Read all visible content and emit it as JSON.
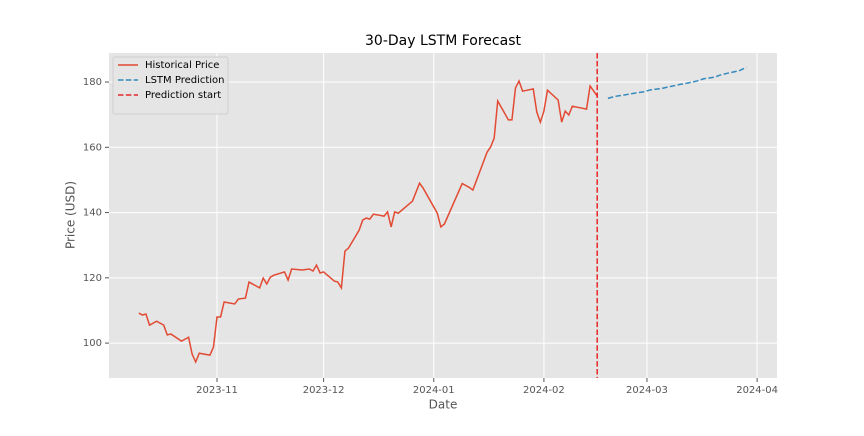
{
  "chart_data": {
    "type": "line",
    "title": "30-Day LSTM Forecast",
    "x_label": "Date",
    "y_label": "Price (USD)",
    "series": [
      {
        "name": "Historical Price",
        "color": "#E24A33",
        "dash": false,
        "x": [
          19640,
          19641,
          19642,
          19643,
          19645,
          19647,
          19648,
          19649,
          19652,
          19654,
          19655,
          19656,
          19657,
          19660,
          19661,
          19662,
          19663,
          19664,
          19667,
          19668,
          19670,
          19671,
          19674,
          19675,
          19676,
          19677,
          19678,
          19681,
          19682,
          19683,
          19686,
          19688,
          19689,
          19690,
          19691,
          19692,
          19695,
          19696,
          19697,
          19698,
          19699,
          19702,
          19703,
          19704,
          19705,
          19706,
          19709,
          19710,
          19711,
          19712,
          19713,
          19717,
          19719,
          19720,
          19724,
          19725,
          19726,
          19731,
          19733,
          19734,
          19738,
          19739,
          19740,
          19741,
          19744,
          19745,
          19746,
          19747,
          19748,
          19751,
          19752,
          19753,
          19754,
          19755,
          19758,
          19759,
          19760,
          19761,
          19762,
          19766,
          19767,
          19769
        ],
        "values": [
          109.2,
          108.6,
          108.9,
          105.5,
          106.7,
          105.5,
          102.5,
          102.8,
          100.6,
          101.8,
          96.6,
          94.2,
          96.9,
          96.3,
          98.8,
          108.0,
          108.0,
          112.6,
          112.0,
          113.5,
          113.8,
          118.7,
          116.9,
          119.9,
          118.1,
          120.2,
          120.8,
          121.8,
          119.3,
          122.7,
          122.4,
          122.7,
          122.1,
          123.9,
          121.5,
          121.8,
          119.0,
          118.7,
          116.9,
          128.2,
          129.1,
          134.6,
          137.7,
          138.3,
          138.0,
          139.5,
          138.9,
          140.2,
          135.6,
          140.2,
          139.8,
          143.5,
          149.0,
          147.5,
          139.8,
          135.6,
          136.5,
          148.9,
          147.7,
          146.9,
          158.5,
          160.1,
          162.8,
          174.2,
          168.4,
          168.4,
          178.2,
          180.3,
          177.2,
          177.9,
          170.8,
          167.7,
          171.1,
          177.5,
          174.5,
          167.7,
          171.1,
          169.9,
          172.6,
          171.7,
          178.8,
          175.7
        ]
      },
      {
        "name": "LSTM Prediction",
        "color": "#348ABD",
        "dash": true,
        "x": [
          19772,
          19774,
          19777,
          19779,
          19782,
          19784,
          19787,
          19789,
          19792,
          19794,
          19797,
          19799,
          19802,
          19804,
          19807,
          19809,
          19811
        ],
        "values": [
          175.0,
          175.6,
          176.1,
          176.5,
          177.0,
          177.6,
          178.0,
          178.5,
          179.2,
          179.6,
          180.3,
          181.0,
          181.5,
          182.3,
          183.0,
          183.5,
          184.5
        ]
      }
    ],
    "prediction_start": {
      "x": 19769,
      "label": "Prediction start",
      "color": "#e8262a"
    },
    "xlim": [
      19631.6,
      19819.6
    ],
    "ylim": [
      89.3,
      188.9
    ],
    "xticks": [
      {
        "value": 19662,
        "label": "2023-11"
      },
      {
        "value": 19692,
        "label": "2023-12"
      },
      {
        "value": 19723,
        "label": "2024-01"
      },
      {
        "value": 19754,
        "label": "2024-02"
      },
      {
        "value": 19783,
        "label": "2024-03"
      },
      {
        "value": 19814,
        "label": "2024-04"
      }
    ],
    "yticks": [
      100,
      120,
      140,
      160,
      180
    ],
    "grid": true,
    "legend": "upper left"
  }
}
